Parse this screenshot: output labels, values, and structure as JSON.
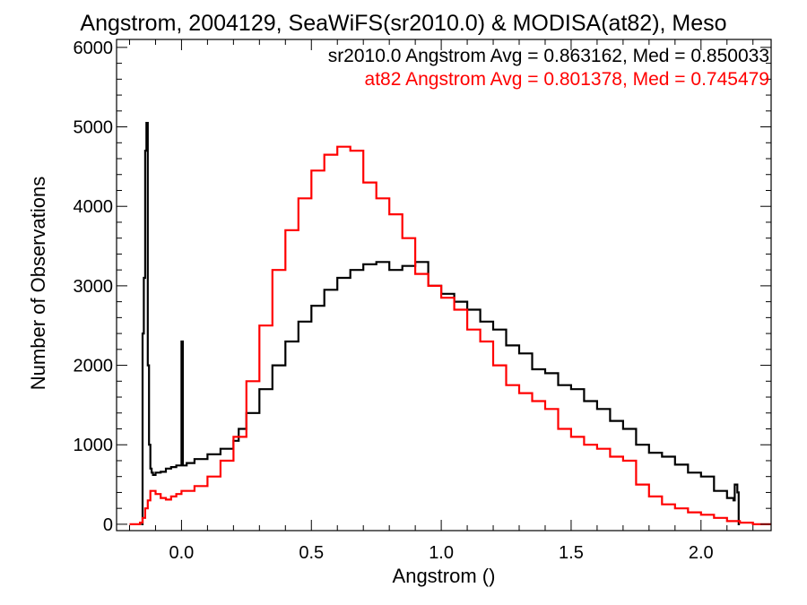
{
  "chart_data": {
    "type": "line",
    "title": "Angstrom, 2004129, SeaWiFS(sr2010.0) & MODISA(at82), Meso",
    "xlabel": "Angstrom ()",
    "ylabel": "Number of Observations",
    "xlim": [
      -0.25,
      2.27
    ],
    "ylim": [
      -80,
      6100
    ],
    "x_ticks": [
      0.0,
      0.5,
      1.0,
      1.5,
      2.0
    ],
    "x_tick_labels": [
      "0.0",
      "0.5",
      "1.0",
      "1.5",
      "2.0"
    ],
    "y_ticks": [
      0,
      1000,
      2000,
      3000,
      4000,
      5000,
      6000
    ],
    "y_tick_labels": [
      "0",
      "1000",
      "2000",
      "3000",
      "4000",
      "5000",
      "6000"
    ],
    "grid": false,
    "annotations": [
      {
        "text": "sr2010.0 Angstrom Avg = 0.863162, Med = 0.850033",
        "color": "#000000"
      },
      {
        "text": "at82 Angstrom Avg = 0.801378, Med = 0.745479",
        "color": "#ff0000"
      }
    ],
    "series": [
      {
        "color": "#000000",
        "x": [
          -0.155,
          -0.15,
          -0.145,
          -0.14,
          -0.135,
          -0.13,
          -0.125,
          -0.12,
          -0.115,
          -0.11,
          -0.1,
          -0.08,
          -0.06,
          -0.04,
          -0.02,
          -0.005,
          0.0,
          0.005,
          0.02,
          0.05,
          0.1,
          0.15,
          0.2,
          0.22,
          0.25,
          0.3,
          0.35,
          0.4,
          0.45,
          0.5,
          0.55,
          0.6,
          0.65,
          0.7,
          0.75,
          0.8,
          0.85,
          0.9,
          0.95,
          1.0,
          1.05,
          1.1,
          1.15,
          1.2,
          1.25,
          1.3,
          1.35,
          1.4,
          1.45,
          1.5,
          1.55,
          1.6,
          1.65,
          1.7,
          1.75,
          1.8,
          1.85,
          1.9,
          1.95,
          2.0,
          2.05,
          2.1,
          2.125,
          2.13,
          2.14,
          2.145,
          2.15
        ],
        "y": [
          0,
          2400,
          3100,
          4700,
          5050,
          2000,
          1000,
          700,
          650,
          620,
          650,
          660,
          700,
          720,
          740,
          740,
          2300,
          740,
          770,
          820,
          880,
          950,
          1050,
          1200,
          1400,
          1700,
          2000,
          2300,
          2550,
          2750,
          2950,
          3100,
          3200,
          3270,
          3300,
          3200,
          3250,
          3300,
          3000,
          2900,
          2800,
          2700,
          2550,
          2450,
          2250,
          2150,
          1950,
          1900,
          1750,
          1700,
          1550,
          1450,
          1300,
          1200,
          1000,
          900,
          850,
          750,
          650,
          600,
          420,
          330,
          300,
          500,
          400,
          0,
          0
        ]
      },
      {
        "color": "#ff0000",
        "x": [
          -0.2,
          -0.16,
          -0.15,
          -0.14,
          -0.13,
          -0.12,
          -0.1,
          -0.08,
          -0.06,
          -0.04,
          -0.02,
          0.0,
          0.05,
          0.1,
          0.15,
          0.2,
          0.25,
          0.3,
          0.35,
          0.4,
          0.45,
          0.5,
          0.55,
          0.6,
          0.65,
          0.7,
          0.75,
          0.8,
          0.85,
          0.9,
          0.95,
          1.0,
          1.05,
          1.1,
          1.15,
          1.2,
          1.25,
          1.3,
          1.35,
          1.4,
          1.45,
          1.5,
          1.55,
          1.6,
          1.65,
          1.7,
          1.75,
          1.8,
          1.85,
          1.9,
          1.95,
          2.0,
          2.05,
          2.1,
          2.15,
          2.2,
          2.27
        ],
        "y": [
          0,
          20,
          80,
          200,
          300,
          420,
          380,
          330,
          310,
          350,
          380,
          420,
          480,
          600,
          800,
          1100,
          1800,
          2500,
          3200,
          3700,
          4100,
          4450,
          4650,
          4750,
          4700,
          4300,
          4100,
          3900,
          3600,
          3150,
          3000,
          2850,
          2700,
          2450,
          2300,
          2000,
          1750,
          1650,
          1550,
          1450,
          1200,
          1100,
          1000,
          950,
          850,
          800,
          500,
          350,
          250,
          200,
          150,
          120,
          80,
          40,
          20,
          0,
          0
        ]
      }
    ]
  }
}
